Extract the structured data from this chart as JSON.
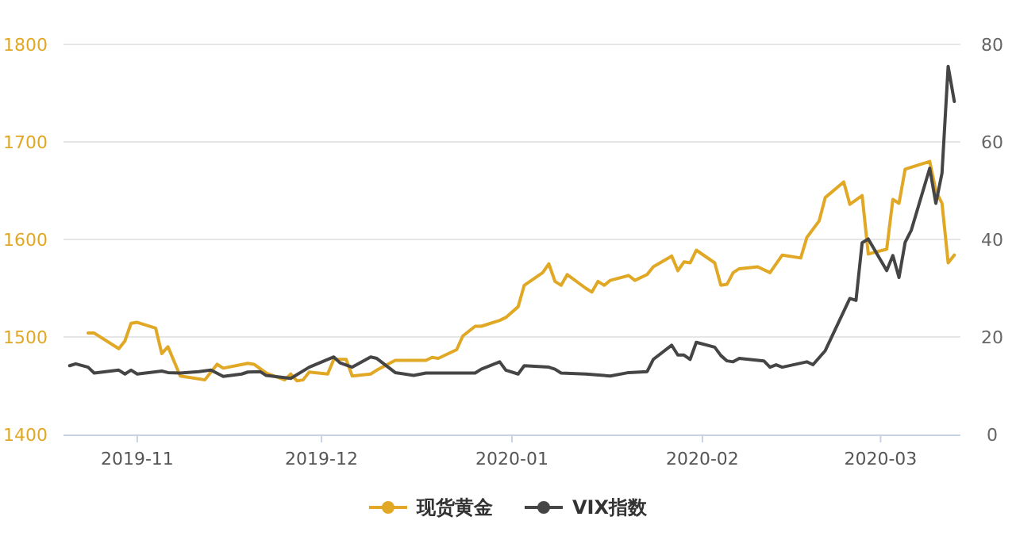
{
  "chart_data": {
    "type": "line",
    "legend": "bottom",
    "grid": "y",
    "xlim": [
      "2019-10-20",
      "2020-03-14"
    ],
    "xticks": [
      "2019-11",
      "2019-12",
      "2020-01",
      "2020-02",
      "2020-03"
    ],
    "ylim": [
      1400,
      1800
    ],
    "yticks": [
      1400,
      1500,
      1600,
      1700,
      1800
    ],
    "y2lim": [
      0,
      80
    ],
    "y2ticks": [
      0,
      20,
      40,
      60,
      80
    ],
    "series": [
      {
        "name": "现货黄金",
        "color": "#e0a825",
        "x": [
          "2019-10-24",
          "2019-10-25",
          "2019-10-29",
          "2019-10-30",
          "2019-10-31",
          "2019-11-01",
          "2019-11-04",
          "2019-11-05",
          "2019-11-06",
          "2019-11-08",
          "2019-11-12",
          "2019-11-14",
          "2019-11-15",
          "2019-11-19",
          "2019-11-20",
          "2019-11-22",
          "2019-11-25",
          "2019-11-26",
          "2019-11-27",
          "2019-11-28",
          "2019-11-29",
          "2019-12-02",
          "2019-12-03",
          "2019-12-05",
          "2019-12-06",
          "2019-12-09",
          "2019-12-10",
          "2019-12-13",
          "2019-12-18",
          "2019-12-19",
          "2019-12-20",
          "2019-12-23",
          "2019-12-24",
          "2019-12-26",
          "2019-12-27",
          "2019-12-30",
          "2019-12-31",
          "2020-01-02",
          "2020-01-03",
          "2020-01-06",
          "2020-01-07",
          "2020-01-08",
          "2020-01-09",
          "2020-01-10",
          "2020-01-13",
          "2020-01-14",
          "2020-01-15",
          "2020-01-16",
          "2020-01-17",
          "2020-01-20",
          "2020-01-21",
          "2020-01-23",
          "2020-01-24",
          "2020-01-27",
          "2020-01-28",
          "2020-01-29",
          "2020-01-30",
          "2020-01-31",
          "2020-02-03",
          "2020-02-04",
          "2020-02-05",
          "2020-02-06",
          "2020-02-07",
          "2020-02-10",
          "2020-02-12",
          "2020-02-14",
          "2020-02-17",
          "2020-02-18",
          "2020-02-20",
          "2020-02-21",
          "2020-02-24",
          "2020-02-25",
          "2020-02-27",
          "2020-02-28",
          "2020-03-02",
          "2020-03-03",
          "2020-03-04",
          "2020-03-05",
          "2020-03-09",
          "2020-03-10",
          "2020-03-11",
          "2020-03-12",
          "2020-03-13"
        ],
        "values": [
          1504,
          1504,
          1488,
          1496,
          1514,
          1515,
          1509,
          1483,
          1490,
          1460,
          1456,
          1472,
          1468,
          1473,
          1472,
          1463,
          1456,
          1462,
          1455,
          1456,
          1464,
          1462,
          1477,
          1477,
          1460,
          1462,
          1466,
          1476,
          1476,
          1479,
          1478,
          1487,
          1501,
          1511,
          1511,
          1517,
          1520,
          1531,
          1553,
          1566,
          1575,
          1557,
          1553,
          1564,
          1550,
          1546,
          1557,
          1553,
          1558,
          1563,
          1558,
          1564,
          1572,
          1583,
          1568,
          1577,
          1576,
          1589,
          1576,
          1553,
          1554,
          1566,
          1570,
          1572,
          1566,
          1584,
          1581,
          1602,
          1619,
          1643,
          1659,
          1636,
          1645,
          1585,
          1590,
          1641,
          1637,
          1672,
          1680,
          1650,
          1637,
          1576,
          1584
        ]
      },
      {
        "name": "VIX指数",
        "color": "#454545",
        "axis": "y2",
        "x": [
          "2019-10-21",
          "2019-10-22",
          "2019-10-24",
          "2019-10-25",
          "2019-10-29",
          "2019-10-30",
          "2019-10-31",
          "2019-11-01",
          "2019-11-05",
          "2019-11-06",
          "2019-11-08",
          "2019-11-11",
          "2019-11-13",
          "2019-11-15",
          "2019-11-18",
          "2019-11-19",
          "2019-11-21",
          "2019-11-22",
          "2019-11-26",
          "2019-11-29",
          "2019-12-03",
          "2019-12-04",
          "2019-12-06",
          "2019-12-09",
          "2019-12-10",
          "2019-12-13",
          "2019-12-16",
          "2019-12-18",
          "2019-12-26",
          "2019-12-27",
          "2019-12-30",
          "2019-12-31",
          "2020-01-02",
          "2020-01-03",
          "2020-01-07",
          "2020-01-08",
          "2020-01-09",
          "2020-01-13",
          "2020-01-17",
          "2020-01-20",
          "2020-01-23",
          "2020-01-24",
          "2020-01-27",
          "2020-01-28",
          "2020-01-29",
          "2020-01-30",
          "2020-01-31",
          "2020-02-03",
          "2020-02-04",
          "2020-02-05",
          "2020-02-06",
          "2020-02-07",
          "2020-02-11",
          "2020-02-12",
          "2020-02-13",
          "2020-02-14",
          "2020-02-18",
          "2020-02-19",
          "2020-02-21",
          "2020-02-25",
          "2020-02-26",
          "2020-02-27",
          "2020-02-28",
          "2020-03-02",
          "2020-03-03",
          "2020-03-04",
          "2020-03-05",
          "2020-03-06",
          "2020-03-09",
          "2020-03-10",
          "2020-03-11",
          "2020-03-12",
          "2020-03-13"
        ],
        "values": [
          14.1,
          14.5,
          13.8,
          12.6,
          13.2,
          12.4,
          13.2,
          12.4,
          13.0,
          12.7,
          12.6,
          12.9,
          13.2,
          11.9,
          12.4,
          12.8,
          12.9,
          12.1,
          11.5,
          13.8,
          15.9,
          14.7,
          13.8,
          15.9,
          15.6,
          12.7,
          12.1,
          12.6,
          12.6,
          13.4,
          14.9,
          13.2,
          12.4,
          14.1,
          13.8,
          13.4,
          12.6,
          12.4,
          12.0,
          12.7,
          12.9,
          15.4,
          18.3,
          16.3,
          16.3,
          15.4,
          18.9,
          17.9,
          16.2,
          15.1,
          14.9,
          15.6,
          15.1,
          13.8,
          14.3,
          13.8,
          14.9,
          14.3,
          17.2,
          27.9,
          27.5,
          39.3,
          40.1,
          33.6,
          36.7,
          32.2,
          39.4,
          41.9,
          54.6,
          47.4,
          53.6,
          75.5,
          68.3
        ]
      }
    ]
  }
}
